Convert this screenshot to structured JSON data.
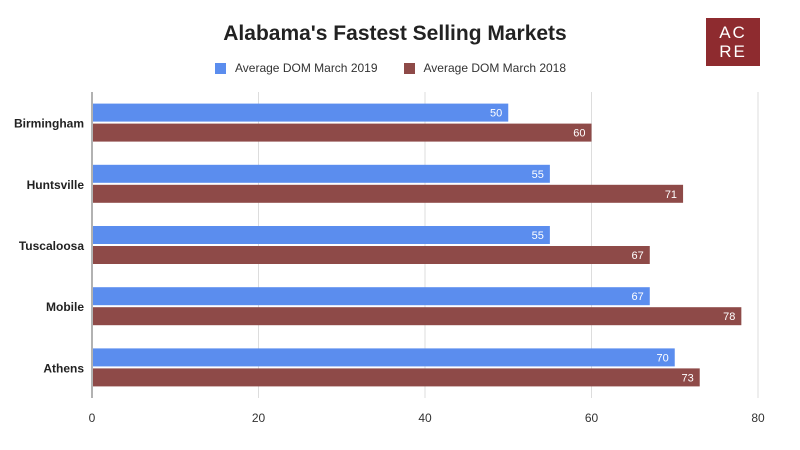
{
  "colors": {
    "series_2019": "#5B8DEE",
    "series_2018": "#8E4A48",
    "logo_bg": "#8E2B2F",
    "grid": "#DDDDDD",
    "text": "#333333"
  },
  "logo": {
    "line1": "AC",
    "line2": "RE"
  },
  "chart_data": {
    "type": "bar",
    "orientation": "horizontal",
    "title": "Alabama's Fastest Selling Markets",
    "categories": [
      "Birmingham",
      "Huntsville",
      "Tuscaloosa",
      "Mobile",
      "Athens"
    ],
    "series": [
      {
        "name": "Average DOM March 2019",
        "values": [
          50,
          55,
          55,
          67,
          70
        ]
      },
      {
        "name": "Average DOM March 2018",
        "values": [
          60,
          71,
          67,
          78,
          73
        ]
      }
    ],
    "xlim": [
      0,
      80
    ],
    "xticks": [
      0,
      20,
      40,
      60,
      80
    ],
    "grid": true,
    "legend": "top",
    "data_labels": true
  }
}
